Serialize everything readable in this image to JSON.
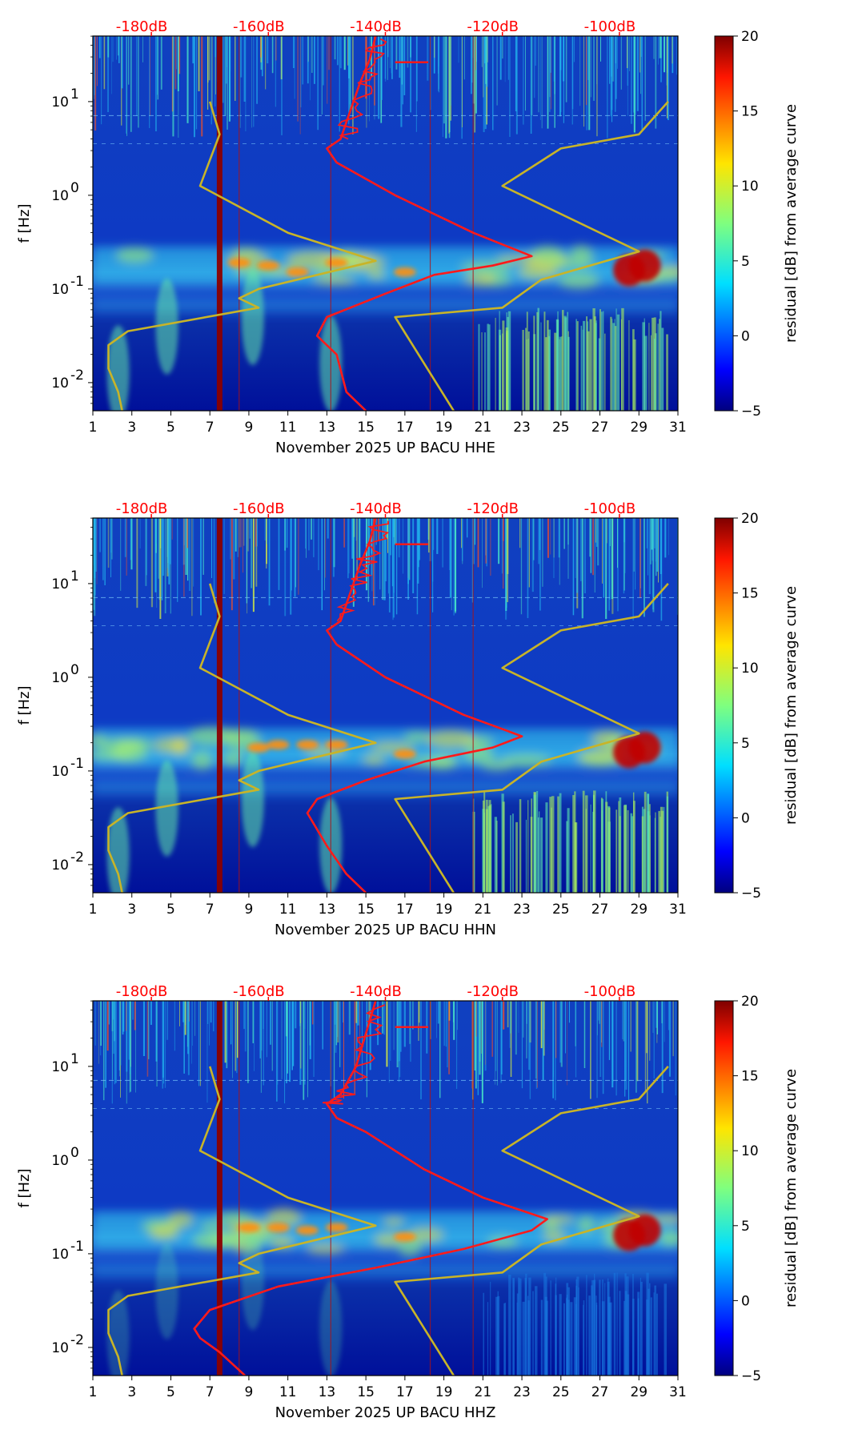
{
  "chart_data": [
    {
      "type": "heatmap",
      "title": "",
      "xlabel": "November 2025 UP BACU  HHE",
      "ylabel": "f [Hz]",
      "xlim": [
        1,
        31
      ],
      "ylim_log10": [
        -2.3,
        1.7
      ],
      "x_ticks": [
        "1",
        "3",
        "5",
        "7",
        "9",
        "11",
        "13",
        "15",
        "17",
        "19",
        "21",
        "23",
        "25",
        "27",
        "29",
        "31"
      ],
      "y_ticks": [
        {
          "label": "10",
          "exp": "-2",
          "value": -2
        },
        {
          "label": "10",
          "exp": "-1",
          "value": -1
        },
        {
          "label": "10",
          "exp": "0",
          "value": 0
        },
        {
          "label": "10",
          "exp": "1",
          "value": 1
        }
      ],
      "db_ticks": [
        {
          "label": "-180dB",
          "x": 4.0
        },
        {
          "label": "-160dB",
          "x": 10.0
        },
        {
          "label": "-140dB",
          "x": 16.0
        },
        {
          "label": "-120dB",
          "x": 22.0
        },
        {
          "label": "-100dB",
          "x": 28.0
        }
      ],
      "colorbar": {
        "label": "residual [dB] from average curve",
        "min": -5,
        "max": 20,
        "ticks": [
          "−5",
          "0",
          "5",
          "10",
          "15",
          "20"
        ]
      },
      "markers": [
        7.5,
        8.5,
        13.2,
        18.3,
        20.5
      ],
      "hot_spots": [
        [
          8.5,
          -0.72
        ],
        [
          10.0,
          -0.75
        ],
        [
          11.5,
          -0.82
        ],
        [
          13.5,
          -0.72
        ],
        [
          17.0,
          -0.82
        ],
        [
          28.5,
          -0.8
        ],
        [
          29.3,
          -0.75
        ]
      ],
      "noise_model_curves": [
        {
          "name": "low model",
          "points": [
            [
              2.5,
              -2.3
            ],
            [
              2.3,
              -2.1
            ],
            [
              1.8,
              -1.85
            ],
            [
              1.8,
              -1.6
            ],
            [
              2.8,
              -1.45
            ],
            [
              9.5,
              -1.2
            ],
            [
              8.5,
              -1.1
            ],
            [
              9.5,
              -1.0
            ],
            [
              15.5,
              -0.7
            ],
            [
              11.0,
              -0.4
            ],
            [
              6.5,
              0.1
            ],
            [
              7.5,
              0.65
            ],
            [
              7.0,
              1.0
            ]
          ]
        },
        {
          "name": "high model",
          "points": [
            [
              19.5,
              -2.3
            ],
            [
              16.5,
              -1.3
            ],
            [
              22.0,
              -1.2
            ],
            [
              24.0,
              -0.9
            ],
            [
              29.0,
              -0.6
            ],
            [
              22.0,
              0.1
            ],
            [
              25.0,
              0.5
            ],
            [
              29.0,
              0.65
            ],
            [
              30.5,
              1.0
            ]
          ]
        },
        {
          "name": "median PSD",
          "points": [
            [
              15.0,
              -2.3
            ],
            [
              14.0,
              -2.1
            ],
            [
              13.5,
              -1.7
            ],
            [
              12.5,
              -1.5
            ],
            [
              13.0,
              -1.3
            ],
            [
              16.0,
              -1.05
            ],
            [
              18.5,
              -0.85
            ],
            [
              21.5,
              -0.75
            ],
            [
              23.5,
              -0.65
            ],
            [
              20.5,
              -0.4
            ],
            [
              16.5,
              0.0
            ],
            [
              13.5,
              0.35
            ],
            [
              13.0,
              0.5
            ],
            [
              13.7,
              0.6
            ],
            [
              14.2,
              0.9
            ],
            [
              14.7,
              1.2
            ],
            [
              15.2,
              1.45
            ],
            [
              15.5,
              1.7
            ]
          ]
        }
      ]
    },
    {
      "type": "heatmap",
      "title": "",
      "xlabel": "November 2025 UP BACU  HHN",
      "ylabel": "f [Hz]",
      "xlim": [
        1,
        31
      ],
      "ylim_log10": [
        -2.3,
        1.7
      ],
      "x_ticks": [
        "1",
        "3",
        "5",
        "7",
        "9",
        "11",
        "13",
        "15",
        "17",
        "19",
        "21",
        "23",
        "25",
        "27",
        "29",
        "31"
      ],
      "y_ticks": [
        {
          "label": "10",
          "exp": "-2",
          "value": -2
        },
        {
          "label": "10",
          "exp": "-1",
          "value": -1
        },
        {
          "label": "10",
          "exp": "0",
          "value": 0
        },
        {
          "label": "10",
          "exp": "1",
          "value": 1
        }
      ],
      "db_ticks": [
        {
          "label": "-180dB",
          "x": 4.0
        },
        {
          "label": "-160dB",
          "x": 10.0
        },
        {
          "label": "-140dB",
          "x": 16.0
        },
        {
          "label": "-120dB",
          "x": 22.0
        },
        {
          "label": "-100dB",
          "x": 28.0
        }
      ],
      "colorbar": {
        "label": "residual [dB] from average curve",
        "min": -5,
        "max": 20,
        "ticks": [
          "−5",
          "0",
          "5",
          "10",
          "15",
          "20"
        ]
      },
      "markers": [
        7.5,
        8.5,
        13.2,
        18.3,
        20.5
      ],
      "hot_spots": [
        [
          9.5,
          -0.75
        ],
        [
          10.5,
          -0.72
        ],
        [
          12.0,
          -0.72
        ],
        [
          13.5,
          -0.72
        ],
        [
          17.0,
          -0.82
        ],
        [
          28.5,
          -0.8
        ],
        [
          29.3,
          -0.75
        ]
      ],
      "noise_model_curves": [
        {
          "name": "low model",
          "points": [
            [
              2.5,
              -2.3
            ],
            [
              2.3,
              -2.1
            ],
            [
              1.8,
              -1.85
            ],
            [
              1.8,
              -1.6
            ],
            [
              2.8,
              -1.45
            ],
            [
              9.5,
              -1.2
            ],
            [
              8.5,
              -1.1
            ],
            [
              9.5,
              -1.0
            ],
            [
              15.5,
              -0.7
            ],
            [
              11.0,
              -0.4
            ],
            [
              6.5,
              0.1
            ],
            [
              7.5,
              0.65
            ],
            [
              7.0,
              1.0
            ]
          ]
        },
        {
          "name": "high model",
          "points": [
            [
              19.5,
              -2.3
            ],
            [
              16.5,
              -1.3
            ],
            [
              22.0,
              -1.2
            ],
            [
              24.0,
              -0.9
            ],
            [
              29.0,
              -0.6
            ],
            [
              22.0,
              0.1
            ],
            [
              25.0,
              0.5
            ],
            [
              29.0,
              0.65
            ],
            [
              30.5,
              1.0
            ]
          ]
        },
        {
          "name": "median PSD",
          "points": [
            [
              15.0,
              -2.3
            ],
            [
              14.0,
              -2.1
            ],
            [
              13.0,
              -1.8
            ],
            [
              12.0,
              -1.45
            ],
            [
              12.5,
              -1.3
            ],
            [
              15.0,
              -1.1
            ],
            [
              18.0,
              -0.9
            ],
            [
              21.5,
              -0.75
            ],
            [
              23.0,
              -0.63
            ],
            [
              20.0,
              -0.4
            ],
            [
              16.0,
              0.0
            ],
            [
              13.5,
              0.35
            ],
            [
              13.0,
              0.5
            ],
            [
              13.7,
              0.6
            ],
            [
              14.2,
              0.9
            ],
            [
              14.7,
              1.2
            ],
            [
              15.2,
              1.45
            ],
            [
              15.5,
              1.7
            ]
          ]
        }
      ]
    },
    {
      "type": "heatmap",
      "title": "",
      "xlabel": "November 2025 UP BACU  HHZ",
      "ylabel": "f [Hz]",
      "xlim": [
        1,
        31
      ],
      "ylim_log10": [
        -2.3,
        1.7
      ],
      "x_ticks": [
        "1",
        "3",
        "5",
        "7",
        "9",
        "11",
        "13",
        "15",
        "17",
        "19",
        "21",
        "23",
        "25",
        "27",
        "29",
        "31"
      ],
      "y_ticks": [
        {
          "label": "10",
          "exp": "-2",
          "value": -2
        },
        {
          "label": "10",
          "exp": "-1",
          "value": -1
        },
        {
          "label": "10",
          "exp": "0",
          "value": 0
        },
        {
          "label": "10",
          "exp": "1",
          "value": 1
        }
      ],
      "db_ticks": [
        {
          "label": "-180dB",
          "x": 4.0
        },
        {
          "label": "-160dB",
          "x": 10.0
        },
        {
          "label": "-140dB",
          "x": 16.0
        },
        {
          "label": "-120dB",
          "x": 22.0
        },
        {
          "label": "-100dB",
          "x": 28.0
        }
      ],
      "colorbar": {
        "label": "residual [dB] from average curve",
        "min": -5,
        "max": 20,
        "ticks": [
          "−5",
          "0",
          "5",
          "10",
          "15",
          "20"
        ]
      },
      "markers": [
        7.5,
        8.5,
        13.2,
        18.3,
        20.5
      ],
      "hot_spots": [
        [
          9.0,
          -0.72
        ],
        [
          10.5,
          -0.72
        ],
        [
          12.0,
          -0.75
        ],
        [
          13.5,
          -0.72
        ],
        [
          17.0,
          -0.82
        ],
        [
          28.5,
          -0.8
        ],
        [
          29.3,
          -0.75
        ]
      ],
      "noise_model_curves": [
        {
          "name": "low model",
          "points": [
            [
              2.5,
              -2.3
            ],
            [
              2.3,
              -2.1
            ],
            [
              1.8,
              -1.85
            ],
            [
              1.8,
              -1.6
            ],
            [
              2.8,
              -1.45
            ],
            [
              9.5,
              -1.2
            ],
            [
              8.5,
              -1.1
            ],
            [
              9.5,
              -1.0
            ],
            [
              15.5,
              -0.7
            ],
            [
              11.0,
              -0.4
            ],
            [
              6.5,
              0.1
            ],
            [
              7.5,
              0.65
            ],
            [
              7.0,
              1.0
            ]
          ]
        },
        {
          "name": "high model",
          "points": [
            [
              19.5,
              -2.3
            ],
            [
              16.5,
              -1.3
            ],
            [
              22.0,
              -1.2
            ],
            [
              24.0,
              -0.9
            ],
            [
              29.0,
              -0.6
            ],
            [
              22.0,
              0.1
            ],
            [
              25.0,
              0.5
            ],
            [
              29.0,
              0.65
            ],
            [
              30.5,
              1.0
            ]
          ]
        },
        {
          "name": "median PSD",
          "points": [
            [
              8.8,
              -2.3
            ],
            [
              7.5,
              -2.05
            ],
            [
              6.5,
              -1.9
            ],
            [
              6.2,
              -1.8
            ],
            [
              7.0,
              -1.6
            ],
            [
              10.5,
              -1.35
            ],
            [
              15.5,
              -1.15
            ],
            [
              20.0,
              -0.95
            ],
            [
              23.5,
              -0.75
            ],
            [
              24.3,
              -0.63
            ],
            [
              21.0,
              -0.4
            ],
            [
              18.0,
              -0.1
            ],
            [
              15.0,
              0.3
            ],
            [
              13.5,
              0.45
            ],
            [
              13.0,
              0.6
            ],
            [
              13.7,
              0.7
            ],
            [
              14.5,
              1.0
            ],
            [
              15.0,
              1.35
            ],
            [
              15.5,
              1.7
            ]
          ]
        }
      ]
    }
  ]
}
